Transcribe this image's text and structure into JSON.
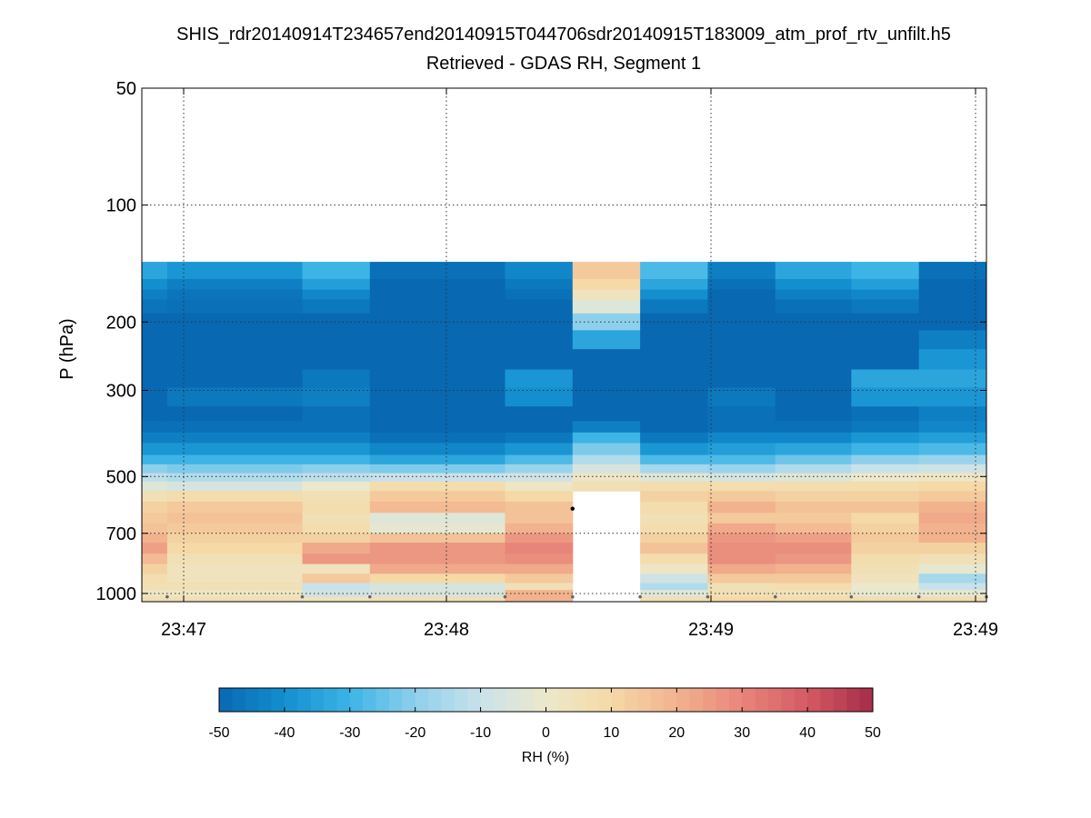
{
  "chart_data": {
    "type": "heatmap",
    "title": "SHIS_rdr20140914T234657end20140915T044706sdr20140915T183009_atm_prof_rtv_unfilt.h5",
    "subtitle": "Retrieved - GDAS RH, Segment 1",
    "xlabel": "",
    "ylabel": "P (hPa)",
    "yscale": "log",
    "yaxis_reversed": true,
    "ylim": [
      50,
      1050
    ],
    "y_ticks": [
      50,
      100,
      200,
      300,
      500,
      700,
      1000
    ],
    "x_ticks": [
      "23:47",
      "23:48",
      "23:49",
      "23:49"
    ],
    "grid": true,
    "colorbar": {
      "label": "RH (%)",
      "range": [
        -50,
        50
      ],
      "ticks": [
        -50,
        -40,
        -30,
        -20,
        -10,
        0,
        10,
        20,
        30,
        40,
        50
      ],
      "orientation": "horizontal",
      "placement": "bottom"
    },
    "colormap_anchors": [
      {
        "v": -50,
        "color": "#0868b2"
      },
      {
        "v": -40,
        "color": "#138fd0"
      },
      {
        "v": -30,
        "color": "#3cb4e6"
      },
      {
        "v": -20,
        "color": "#8ed0ec"
      },
      {
        "v": -10,
        "color": "#c9e2ea"
      },
      {
        "v": 0,
        "color": "#ece8cb"
      },
      {
        "v": 10,
        "color": "#f5d9a6"
      },
      {
        "v": 20,
        "color": "#f2b28e"
      },
      {
        "v": 30,
        "color": "#e8857a"
      },
      {
        "v": 40,
        "color": "#d45a64"
      },
      {
        "v": 50,
        "color": "#a52b48"
      }
    ],
    "nodata_color": "#ffffff",
    "profile_boundaries_hpa": [
      140,
      155,
      165,
      175,
      190,
      210,
      235,
      265,
      295,
      330,
      360,
      385,
      410,
      440,
      465,
      490,
      515,
      545,
      580,
      620,
      660,
      700,
      740,
      790,
      840,
      890,
      940,
      980,
      1020,
      1050
    ],
    "profiles": [
      {
        "x0": 0.0,
        "x1": 0.03,
        "rh": [
          -34,
          -40,
          -44,
          -47,
          -50,
          -50,
          -50,
          -50,
          -50,
          -50,
          -48,
          -44,
          -38,
          -30,
          -20,
          -12,
          -4,
          6,
          12,
          14,
          16,
          20,
          24,
          18,
          12,
          8,
          6,
          2,
          6
        ]
      },
      {
        "x0": 0.03,
        "x1": 0.19,
        "rh": [
          -38,
          -44,
          -47,
          -48,
          -50,
          -50,
          -50,
          -50,
          -46,
          -50,
          -48,
          -44,
          -38,
          -30,
          -22,
          -14,
          -6,
          8,
          14,
          16,
          14,
          12,
          10,
          6,
          4,
          4,
          6,
          2,
          6
        ]
      },
      {
        "x0": 0.19,
        "x1": 0.27,
        "rh": [
          -30,
          -36,
          -42,
          -46,
          -50,
          -50,
          -50,
          -46,
          -44,
          -48,
          -48,
          -44,
          -38,
          -30,
          -20,
          -12,
          0,
          6,
          8,
          6,
          8,
          12,
          22,
          26,
          4,
          14,
          -10,
          -8,
          4
        ]
      },
      {
        "x0": 0.27,
        "x1": 0.43,
        "rh": [
          -48,
          -50,
          -50,
          -50,
          -50,
          -50,
          -50,
          -50,
          -50,
          -50,
          -50,
          -48,
          -42,
          -34,
          -22,
          -10,
          8,
          14,
          18,
          -4,
          -2,
          16,
          26,
          26,
          22,
          10,
          -6,
          -6,
          6
        ]
      },
      {
        "x0": 0.43,
        "x1": 0.51,
        "rh": [
          -42,
          -46,
          -48,
          -50,
          -50,
          -50,
          -50,
          -38,
          -40,
          -50,
          -50,
          -46,
          -38,
          -28,
          -18,
          -8,
          2,
          10,
          16,
          16,
          20,
          26,
          30,
          28,
          22,
          14,
          6,
          20,
          20
        ]
      },
      {
        "x0": 0.51,
        "x1": 0.59,
        "rh": [
          14,
          10,
          4,
          -4,
          -20,
          -34,
          -50,
          -50,
          -50,
          -50,
          -44,
          -30,
          -22,
          -14,
          -6,
          2,
          6,
          null,
          null,
          null,
          null,
          null,
          null,
          null,
          null,
          null,
          null,
          null,
          null
        ]
      },
      {
        "x0": 0.59,
        "x1": 0.67,
        "rh": [
          -28,
          -34,
          -40,
          -46,
          -50,
          -50,
          -50,
          -50,
          -50,
          -50,
          -50,
          -46,
          -38,
          -28,
          -16,
          -4,
          8,
          12,
          8,
          6,
          8,
          12,
          16,
          8,
          2,
          -8,
          -14,
          -4,
          6
        ]
      },
      {
        "x0": 0.67,
        "x1": 0.75,
        "rh": [
          -44,
          -48,
          -50,
          -50,
          -50,
          -50,
          -50,
          -50,
          -46,
          -48,
          -48,
          -42,
          -36,
          -28,
          -18,
          -6,
          8,
          14,
          20,
          14,
          22,
          26,
          28,
          28,
          22,
          14,
          6,
          6,
          10
        ]
      },
      {
        "x0": 0.75,
        "x1": 0.84,
        "rh": [
          -34,
          -40,
          -44,
          -48,
          -50,
          -50,
          -50,
          -50,
          -50,
          -50,
          -48,
          -42,
          -34,
          -24,
          -14,
          -4,
          8,
          12,
          16,
          14,
          18,
          24,
          28,
          26,
          20,
          14,
          8,
          4,
          8
        ]
      },
      {
        "x0": 0.84,
        "x1": 0.92,
        "rh": [
          -30,
          -36,
          -42,
          -46,
          -50,
          -50,
          -50,
          -34,
          -38,
          -48,
          -46,
          -38,
          -30,
          -20,
          -10,
          0,
          8,
          12,
          16,
          10,
          12,
          14,
          12,
          8,
          6,
          4,
          0,
          -2,
          8
        ]
      },
      {
        "x0": 0.92,
        "x1": 1.0,
        "rh": [
          -48,
          -50,
          -50,
          -50,
          -50,
          -44,
          -38,
          -34,
          -38,
          -44,
          -42,
          -36,
          -28,
          -18,
          -8,
          2,
          10,
          14,
          20,
          22,
          20,
          20,
          12,
          6,
          -2,
          -16,
          -10,
          -2,
          8
        ]
      }
    ],
    "markers": [
      {
        "x": 0.03,
        "p": 1020
      },
      {
        "x": 0.19,
        "p": 1020
      },
      {
        "x": 0.27,
        "p": 1020
      },
      {
        "x": 0.43,
        "p": 1020
      },
      {
        "x": 0.51,
        "p": 1020
      },
      {
        "x": 0.51,
        "p": 605
      },
      {
        "x": 0.59,
        "p": 1020
      },
      {
        "x": 0.67,
        "p": 1020
      },
      {
        "x": 0.75,
        "p": 1020
      },
      {
        "x": 0.84,
        "p": 1020
      },
      {
        "x": 0.92,
        "p": 1020
      },
      {
        "x": 1.0,
        "p": 1020
      }
    ]
  }
}
